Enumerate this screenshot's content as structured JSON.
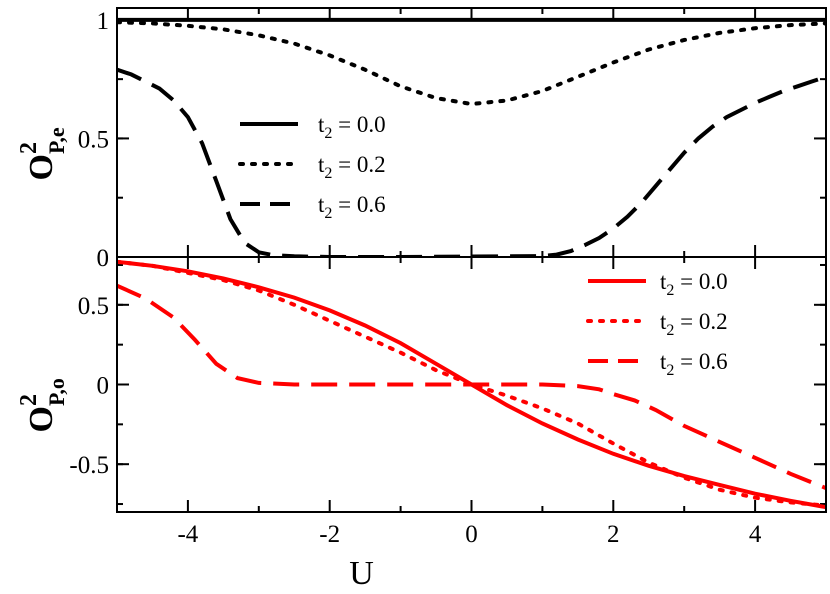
{
  "chart_data": [
    {
      "type": "line",
      "panel": "top",
      "ylabel": "O",
      "ylabel_sup": "2",
      "ylabel_sub": "P,e",
      "xlim": [
        -5,
        5
      ],
      "ylim": [
        0,
        1.05
      ],
      "yticks": [
        0,
        0.5,
        1
      ],
      "ytick_labels": [
        "0",
        "0.5",
        "1"
      ],
      "legend_position": "center-left",
      "series": [
        {
          "name_main": "t",
          "name_sub": "2",
          "name_rest": " = 0.0",
          "color": "#000000",
          "dash": "solid",
          "x": [
            -5,
            5
          ],
          "y": [
            1.0,
            1.0
          ]
        },
        {
          "name_main": "t",
          "name_sub": "2",
          "name_rest": " = 0.2",
          "color": "#000000",
          "dash": "dotted",
          "x": [
            -5,
            -4.5,
            -4,
            -3.5,
            -3,
            -2.5,
            -2,
            -1.5,
            -1,
            -0.5,
            0,
            0.5,
            1,
            1.5,
            2,
            2.5,
            3,
            3.5,
            4,
            4.5,
            5
          ],
          "y": [
            0.99,
            0.985,
            0.975,
            0.96,
            0.935,
            0.9,
            0.85,
            0.79,
            0.72,
            0.67,
            0.645,
            0.66,
            0.7,
            0.76,
            0.82,
            0.875,
            0.915,
            0.945,
            0.965,
            0.978,
            0.985
          ]
        },
        {
          "name_main": "t",
          "name_sub": "2",
          "name_rest": " = 0.6",
          "color": "#000000",
          "dash": "dashed",
          "x": [
            -5,
            -4.8,
            -4.6,
            -4.4,
            -4.2,
            -4,
            -3.8,
            -3.6,
            -3.4,
            -3.2,
            -3,
            -2.8,
            -2.5,
            -2,
            -1,
            0,
            1,
            1.2,
            1.4,
            1.6,
            1.8,
            2,
            2.2,
            2.4,
            2.6,
            2.8,
            3,
            3.2,
            3.4,
            3.6,
            3.8,
            4,
            4.2,
            4.4,
            4.6,
            4.8,
            5
          ],
          "y": [
            0.79,
            0.77,
            0.74,
            0.71,
            0.66,
            0.59,
            0.48,
            0.32,
            0.16,
            0.06,
            0.02,
            0.008,
            0.003,
            0.0,
            0.0,
            0.002,
            0.004,
            0.01,
            0.025,
            0.05,
            0.08,
            0.12,
            0.17,
            0.23,
            0.3,
            0.37,
            0.44,
            0.5,
            0.55,
            0.59,
            0.62,
            0.65,
            0.675,
            0.7,
            0.72,
            0.74,
            0.76
          ]
        }
      ]
    },
    {
      "type": "line",
      "panel": "bottom",
      "xlabel": "U",
      "ylabel": "O",
      "ylabel_sup": "2",
      "ylabel_sub": "P,o",
      "xlim": [
        -5,
        5
      ],
      "ylim": [
        -0.8,
        0.8
      ],
      "xticks": [
        -4,
        -2,
        0,
        2,
        4
      ],
      "xtick_labels": [
        "-4",
        "-2",
        "0",
        "2",
        "4"
      ],
      "yticks": [
        -0.5,
        0,
        0.5
      ],
      "ytick_labels": [
        "-0.5",
        "0",
        "0.5"
      ],
      "legend_position": "top-right",
      "series": [
        {
          "name_main": "t",
          "name_sub": "2",
          "name_rest": " = 0.0",
          "color": "#ff0000",
          "dash": "solid",
          "x": [
            -5,
            -4.5,
            -4,
            -3.5,
            -3,
            -2.5,
            -2,
            -1.5,
            -1,
            -0.5,
            0,
            0.5,
            1,
            1.5,
            2,
            2.5,
            3,
            3.5,
            4,
            4.5,
            5
          ],
          "y": [
            0.77,
            0.745,
            0.71,
            0.665,
            0.61,
            0.545,
            0.465,
            0.37,
            0.26,
            0.13,
            0.0,
            -0.13,
            -0.245,
            -0.345,
            -0.435,
            -0.51,
            -0.575,
            -0.63,
            -0.685,
            -0.73,
            -0.77
          ]
        },
        {
          "name_main": "t",
          "name_sub": "2",
          "name_rest": " = 0.2",
          "color": "#ff0000",
          "dash": "dotted",
          "x": [
            -5,
            -4.5,
            -4,
            -3.5,
            -3,
            -2.5,
            -2,
            -1.5,
            -1,
            -0.5,
            0,
            0.5,
            1,
            1.5,
            2,
            2.5,
            3,
            3.5,
            4,
            4.5,
            5
          ],
          "y": [
            0.77,
            0.745,
            0.7,
            0.655,
            0.59,
            0.5,
            0.4,
            0.3,
            0.2,
            0.09,
            0.0,
            -0.07,
            -0.15,
            -0.245,
            -0.37,
            -0.49,
            -0.585,
            -0.66,
            -0.71,
            -0.74,
            -0.76
          ]
        },
        {
          "name_main": "t",
          "name_sub": "2",
          "name_rest": " = 0.6",
          "color": "#ff0000",
          "dash": "dashed",
          "x": [
            -5,
            -4.6,
            -4.2,
            -3.9,
            -3.6,
            -3.3,
            -3.0,
            -2.5,
            -2,
            -1,
            0,
            1,
            1.5,
            1.8,
            2,
            2.3,
            2.6,
            3,
            3.5,
            4,
            4.5,
            5
          ],
          "y": [
            0.62,
            0.54,
            0.42,
            0.28,
            0.13,
            0.04,
            0.01,
            0.0,
            0.0,
            0.0,
            0.0,
            0.0,
            -0.01,
            -0.03,
            -0.06,
            -0.1,
            -0.16,
            -0.26,
            -0.36,
            -0.46,
            -0.56,
            -0.65
          ]
        }
      ]
    }
  ]
}
